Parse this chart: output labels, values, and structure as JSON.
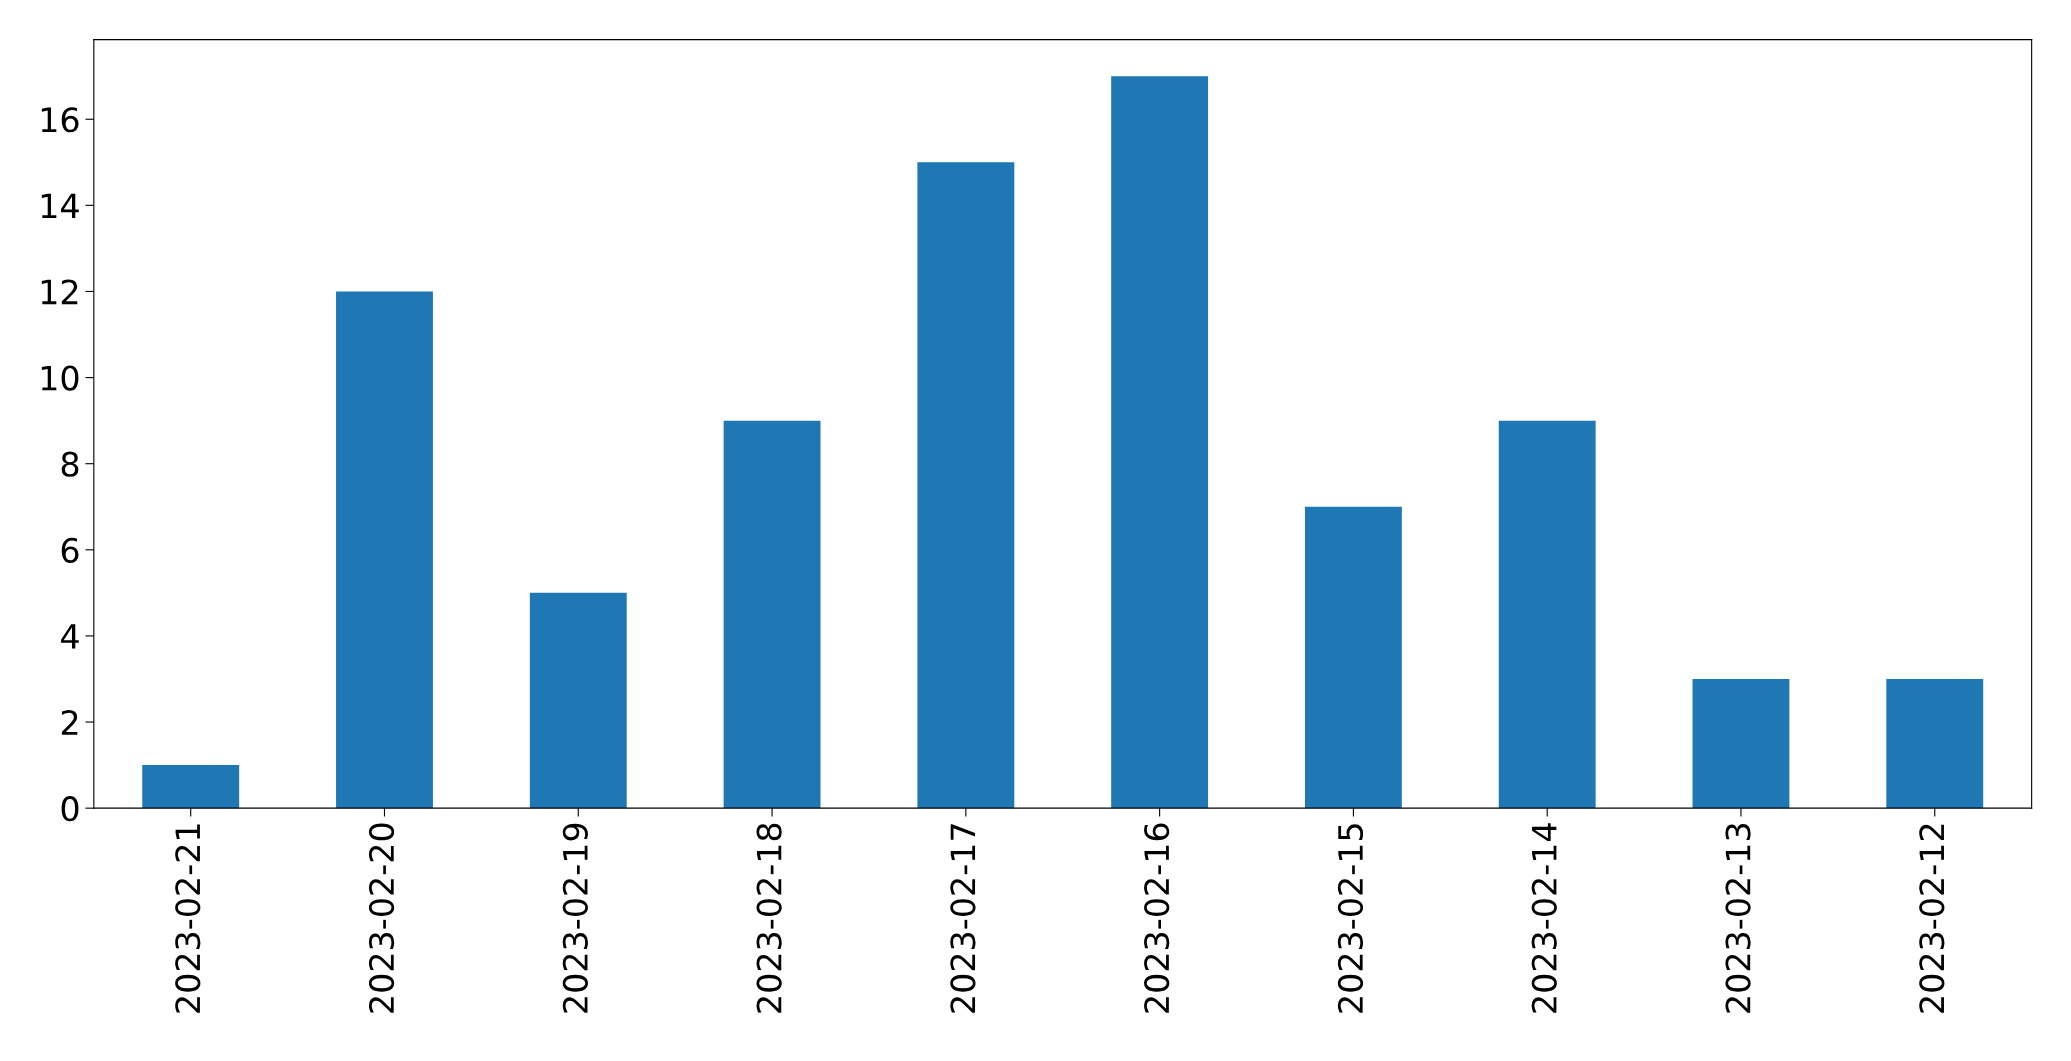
{
  "chart_data": {
    "type": "bar",
    "categories": [
      "2023-02-21",
      "2023-02-20",
      "2023-02-19",
      "2023-02-18",
      "2023-02-17",
      "2023-02-16",
      "2023-02-15",
      "2023-02-14",
      "2023-02-13",
      "2023-02-12"
    ],
    "values": [
      1,
      12,
      5,
      9,
      15,
      17,
      7,
      9,
      3,
      3
    ],
    "color": "#1f77b4",
    "ylim": [
      0,
      17.85
    ],
    "yticks": [
      0,
      2,
      4,
      6,
      8,
      10,
      12,
      14,
      16
    ],
    "grid": false
  }
}
